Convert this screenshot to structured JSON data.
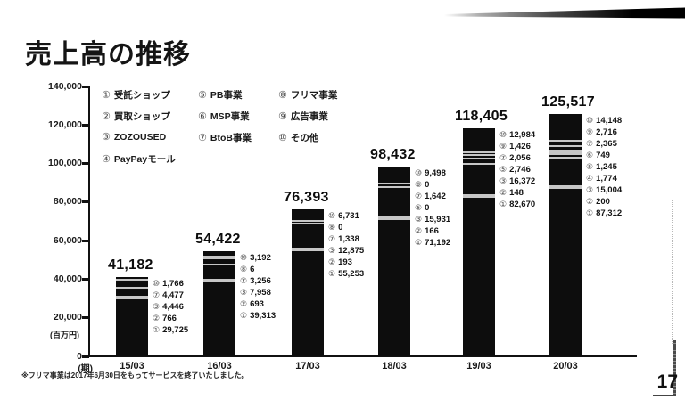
{
  "header": {
    "title": "売上高の推移"
  },
  "page": {
    "number": "17"
  },
  "footnote": "※フリマ事業は2017年6月30日をもってサービスを終了いたしました。",
  "chart_data": {
    "type": "bar",
    "stacked": true,
    "title": "売上高の推移",
    "unit_label": "(百万円)",
    "period_label": "(期)",
    "ylim": [
      0,
      140000
    ],
    "ytick_interval": 20000,
    "yticks": [
      {
        "value": 140000,
        "label": "140,000"
      },
      {
        "value": 120000,
        "label": "120,000"
      },
      {
        "value": 100000,
        "label": "100,000"
      },
      {
        "value": 80000,
        "label": "80,000"
      },
      {
        "value": 60000,
        "label": "60,000"
      },
      {
        "value": 40000,
        "label": "40,000"
      },
      {
        "value": 20000,
        "label": "20,000"
      },
      {
        "value": 0,
        "label": "0"
      }
    ],
    "legend_columns": [
      [
        {
          "num": "①",
          "label": "受託ショップ"
        },
        {
          "num": "②",
          "label": "買取ショップ"
        },
        {
          "num": "③",
          "label": "ZOZOUSED"
        },
        {
          "num": "④",
          "label": "PayPayモール"
        }
      ],
      [
        {
          "num": "⑤",
          "label": "PB事業"
        },
        {
          "num": "⑥",
          "label": "MSP事業"
        },
        {
          "num": "⑦",
          "label": "BtoB事業"
        }
      ],
      [
        {
          "num": "⑧",
          "label": "フリマ事業"
        },
        {
          "num": "⑨",
          "label": "広告事業"
        },
        {
          "num": "⑩",
          "label": "その他"
        }
      ]
    ],
    "categories": [
      "15/03",
      "16/03",
      "17/03",
      "18/03",
      "19/03",
      "20/03"
    ],
    "bars": [
      {
        "category": "15/03",
        "total": 41182,
        "total_label": "41,182",
        "segments": [
          {
            "num": "⑩",
            "value": 1766,
            "label": "1,766"
          },
          {
            "num": "⑦",
            "value": 4477,
            "label": "4,477"
          },
          {
            "num": "③",
            "value": 4446,
            "label": "4,446"
          },
          {
            "num": "②",
            "value": 766,
            "label": "766"
          },
          {
            "num": "①",
            "value": 29725,
            "label": "29,725"
          }
        ]
      },
      {
        "category": "16/03",
        "total": 54422,
        "total_label": "54,422",
        "segments": [
          {
            "num": "⑩",
            "value": 3192,
            "label": "3,192"
          },
          {
            "num": "⑧",
            "value": 6,
            "label": "6"
          },
          {
            "num": "⑦",
            "value": 3256,
            "label": "3,256"
          },
          {
            "num": "③",
            "value": 7958,
            "label": "7,958"
          },
          {
            "num": "②",
            "value": 693,
            "label": "693"
          },
          {
            "num": "①",
            "value": 39313,
            "label": "39,313"
          }
        ]
      },
      {
        "category": "17/03",
        "total": 76393,
        "total_label": "76,393",
        "segments": [
          {
            "num": "⑩",
            "value": 6731,
            "label": "6,731"
          },
          {
            "num": "⑧",
            "value": 0,
            "label": "0"
          },
          {
            "num": "⑦",
            "value": 1338,
            "label": "1,338"
          },
          {
            "num": "③",
            "value": 12875,
            "label": "12,875"
          },
          {
            "num": "②",
            "value": 193,
            "label": "193"
          },
          {
            "num": "①",
            "value": 55253,
            "label": "55,253"
          }
        ]
      },
      {
        "category": "18/03",
        "total": 98432,
        "total_label": "98,432",
        "segments": [
          {
            "num": "⑩",
            "value": 9498,
            "label": "9,498"
          },
          {
            "num": "⑧",
            "value": 0,
            "label": "0"
          },
          {
            "num": "⑦",
            "value": 1642,
            "label": "1,642"
          },
          {
            "num": "⑤",
            "value": 0,
            "label": "0"
          },
          {
            "num": "③",
            "value": 15931,
            "label": "15,931"
          },
          {
            "num": "②",
            "value": 166,
            "label": "166"
          },
          {
            "num": "①",
            "value": 71192,
            "label": "71,192"
          }
        ]
      },
      {
        "category": "19/03",
        "total": 118405,
        "total_label": "118,405",
        "segments": [
          {
            "num": "⑩",
            "value": 12984,
            "label": "12,984"
          },
          {
            "num": "⑨",
            "value": 1426,
            "label": "1,426"
          },
          {
            "num": "⑦",
            "value": 2056,
            "label": "2,056"
          },
          {
            "num": "⑤",
            "value": 2746,
            "label": "2,746"
          },
          {
            "num": "③",
            "value": 16372,
            "label": "16,372"
          },
          {
            "num": "②",
            "value": 148,
            "label": "148"
          },
          {
            "num": "①",
            "value": 82670,
            "label": "82,670"
          }
        ]
      },
      {
        "category": "20/03",
        "total": 125517,
        "total_label": "125,517",
        "segments": [
          {
            "num": "⑩",
            "value": 14148,
            "label": "14,148"
          },
          {
            "num": "⑨",
            "value": 2716,
            "label": "2,716"
          },
          {
            "num": "⑦",
            "value": 2365,
            "label": "2,365"
          },
          {
            "num": "⑥",
            "value": 749,
            "label": "749"
          },
          {
            "num": "⑤",
            "value": 1245,
            "label": "1,245"
          },
          {
            "num": "④",
            "value": 1774,
            "label": "1,774"
          },
          {
            "num": "③",
            "value": 15004,
            "label": "15,004"
          },
          {
            "num": "②",
            "value": 200,
            "label": "200"
          },
          {
            "num": "①",
            "value": 87312,
            "label": "87,312"
          }
        ]
      }
    ],
    "bar_color": "#0d0d0d",
    "grid": false,
    "legend_position": "top-inside"
  }
}
